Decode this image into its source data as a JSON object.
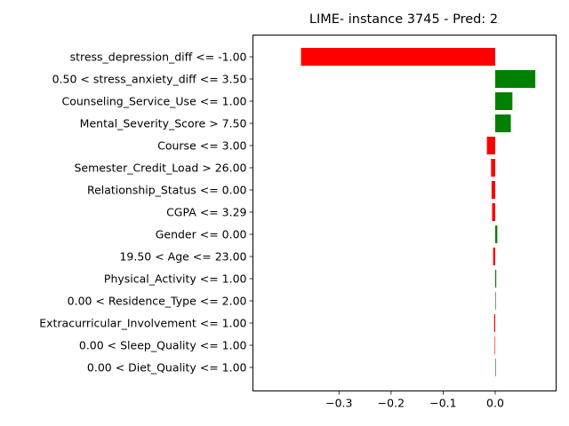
{
  "chart_data": {
    "type": "bar",
    "orientation": "horizontal",
    "title": "LIME- instance 3745 - Pred: 2",
    "xlabel": "",
    "ylabel": "",
    "xlim": [
      -0.4,
      0.1
    ],
    "xticks": [
      {
        "value": -0.3,
        "label": "−0.3"
      },
      {
        "value": -0.2,
        "label": "−0.2"
      },
      {
        "value": -0.1,
        "label": "−0.1"
      },
      {
        "value": 0.0,
        "label": "0.0"
      }
    ],
    "positive_color": "#008000",
    "negative_color": "#ff0000",
    "grid": false,
    "categories": [
      "stress_depression_diff <= -1.00",
      "0.50 < stress_anxiety_diff <= 3.50",
      "Counseling_Service_Use <= 1.00",
      "Mental_Severity_Score > 7.50",
      "Course <= 3.00",
      "Semester_Credit_Load > 26.00",
      "Relationship_Status <= 0.00",
      "CGPA <= 3.29",
      "Gender <= 0.00",
      "19.50 < Age <= 23.00",
      "Physical_Activity <= 1.00",
      "0.00 < Residence_Type <= 2.00",
      "Extracurricular_Involvement <= 1.00",
      "0.00 < Sleep_Quality <= 1.00",
      "0.00 < Diet_Quality <= 1.00"
    ],
    "values": [
      -0.373,
      0.077,
      0.033,
      0.03,
      -0.016,
      -0.008,
      -0.007,
      -0.006,
      0.004,
      -0.004,
      0.002,
      0.001,
      -0.002,
      -0.001,
      0.0
    ]
  }
}
